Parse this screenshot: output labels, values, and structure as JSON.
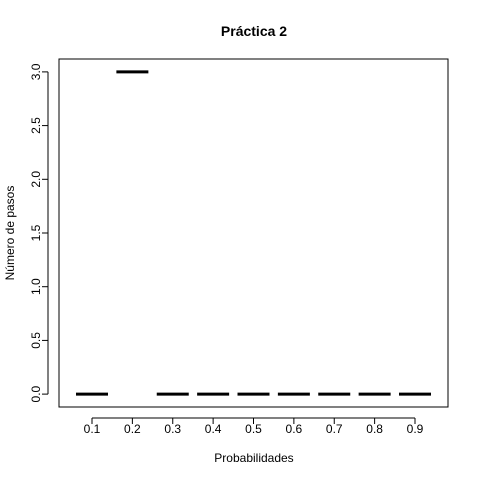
{
  "chart_data": {
    "type": "boxplot",
    "title": "Práctica 2",
    "xlabel": "Probabilidades",
    "ylabel": "Número de pasos",
    "categories": [
      "0.1",
      "0.2",
      "0.3",
      "0.4",
      "0.5",
      "0.6",
      "0.7",
      "0.8",
      "0.9"
    ],
    "values": [
      0,
      3,
      0,
      0,
      0,
      0,
      0,
      0,
      0
    ],
    "yticks": [
      "0.0",
      "0.5",
      "1.0",
      "1.5",
      "2.0",
      "2.5",
      "3.0"
    ],
    "ylim": [
      -0.12,
      3.12
    ],
    "grid": false
  }
}
